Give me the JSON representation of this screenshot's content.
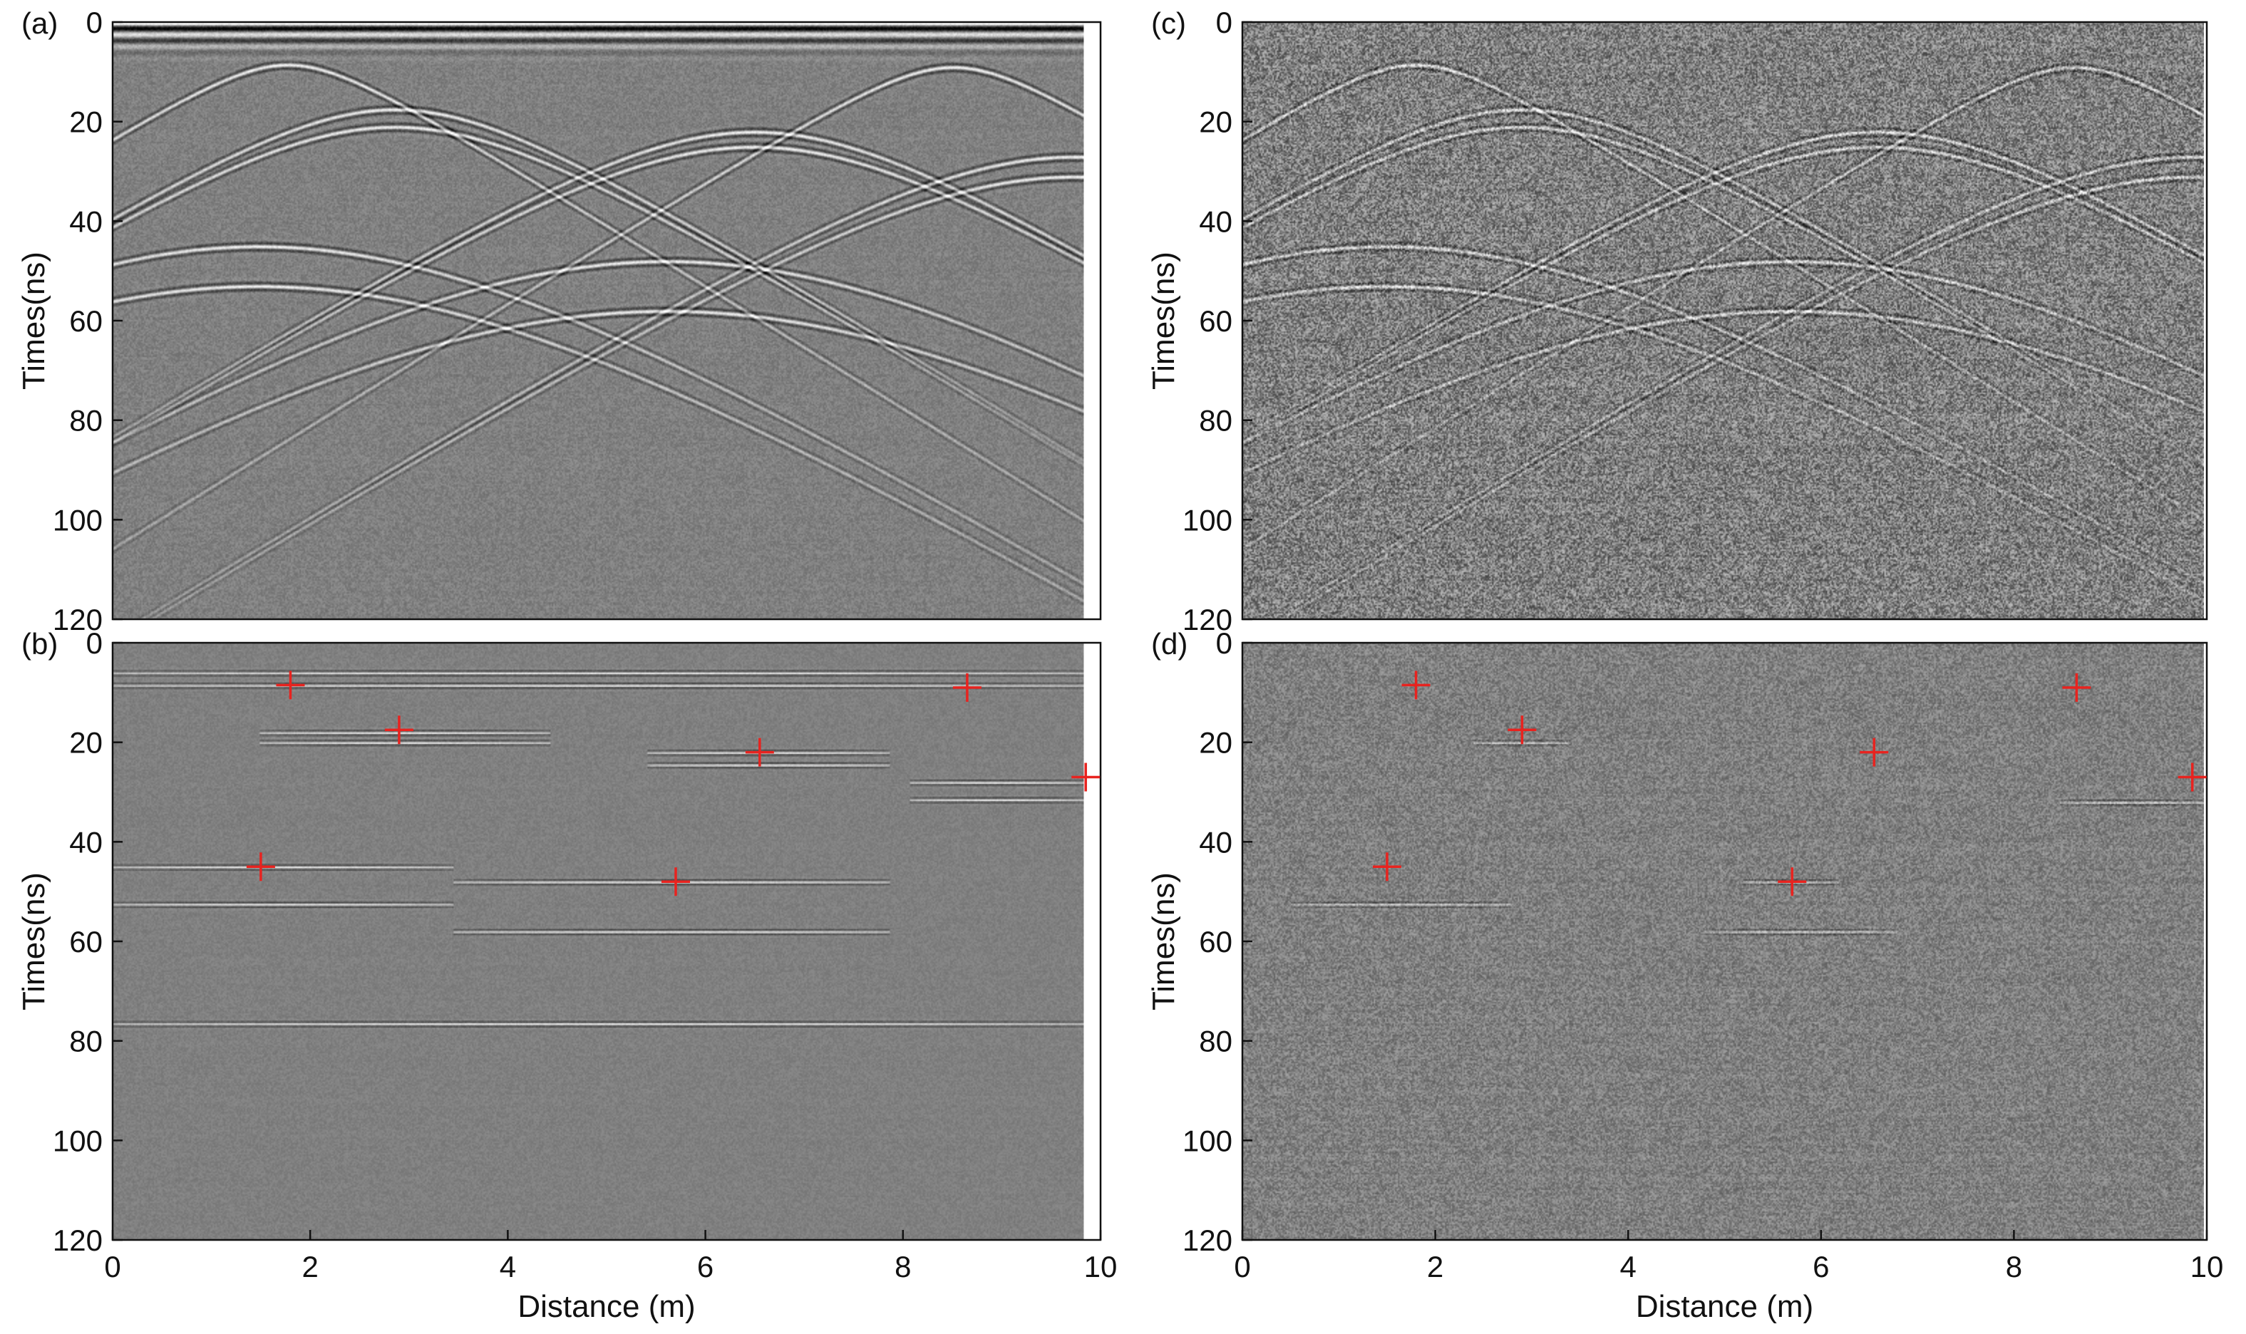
{
  "chart_data": [
    {
      "panel": "(a)",
      "type": "heatmap",
      "description_key": "raw",
      "xlabel": "",
      "ylabel": "Times(ns)",
      "xlim": [
        0,
        10
      ],
      "ylim": [
        0,
        120
      ],
      "yticks": [
        0,
        20,
        40,
        60,
        80,
        100,
        120
      ],
      "xticks": [],
      "noise": 0.16,
      "amp": 1.0,
      "direct_wave": true,
      "hyperbolas": [
        {
          "x0": 1.8,
          "t0": 8.5
        },
        {
          "x0": 2.9,
          "t0": 17.5
        },
        {
          "x0": 2.9,
          "t0": 21.0
        },
        {
          "x0": 6.6,
          "t0": 22.0
        },
        {
          "x0": 6.6,
          "t0": 25.0
        },
        {
          "x0": 8.65,
          "t0": 9.0
        },
        {
          "x0": 9.9,
          "t0": 27.0
        },
        {
          "x0": 9.9,
          "t0": 31.0
        },
        {
          "x0": 1.5,
          "t0": 45.0
        },
        {
          "x0": 1.5,
          "t0": 53.0
        },
        {
          "x0": 5.7,
          "t0": 48.0
        },
        {
          "x0": 5.7,
          "t0": 58.0
        }
      ],
      "markers": []
    },
    {
      "panel": "(b)",
      "type": "heatmap",
      "description_key": "focused",
      "xlabel": "Distance (m)",
      "ylabel": "Times(ns)",
      "xlim": [
        0,
        10
      ],
      "ylim": [
        0,
        120
      ],
      "yticks": [
        0,
        20,
        40,
        60,
        80,
        100,
        120
      ],
      "xticks": [
        0,
        2,
        4,
        6,
        8,
        10
      ],
      "noise": 0.1,
      "amp": 0.9,
      "direct_wave": false,
      "horizontal_events": [
        {
          "t": 6.0,
          "x_from": 0,
          "x_to": 10
        },
        {
          "t": 8.5,
          "x_from": 0,
          "x_to": 10
        },
        {
          "t": 18.0,
          "x_from": 1.5,
          "x_to": 4.5
        },
        {
          "t": 20.0,
          "x_from": 1.5,
          "x_to": 4.5
        },
        {
          "t": 22.0,
          "x_from": 5.5,
          "x_to": 8.0
        },
        {
          "t": 24.5,
          "x_from": 5.5,
          "x_to": 8.0
        },
        {
          "t": 28.0,
          "x_from": 8.2,
          "x_to": 10
        },
        {
          "t": 31.5,
          "x_from": 8.2,
          "x_to": 10
        },
        {
          "t": 45.0,
          "x_from": 0,
          "x_to": 3.5
        },
        {
          "t": 52.5,
          "x_from": 0,
          "x_to": 3.5
        },
        {
          "t": 48.0,
          "x_from": 3.5,
          "x_to": 8.0
        },
        {
          "t": 58.0,
          "x_from": 3.5,
          "x_to": 8.0
        },
        {
          "t": 76.5,
          "x_from": 0,
          "x_to": 10
        }
      ],
      "markers": [
        {
          "x": 1.8,
          "t": 8.5
        },
        {
          "x": 2.9,
          "t": 17.5
        },
        {
          "x": 6.55,
          "t": 22.0
        },
        {
          "x": 8.65,
          "t": 9.0
        },
        {
          "x": 9.85,
          "t": 27.0
        },
        {
          "x": 1.5,
          "t": 45.0
        },
        {
          "x": 5.7,
          "t": 48.0
        }
      ]
    },
    {
      "panel": "(c)",
      "type": "heatmap",
      "description_key": "noisy",
      "xlabel": "",
      "ylabel": "Times(ns)",
      "xlim": [
        0,
        10
      ],
      "ylim": [
        0,
        120
      ],
      "yticks": [
        0,
        20,
        40,
        60,
        80,
        100,
        120
      ],
      "xticks": [],
      "noise": 0.55,
      "amp": 0.75,
      "direct_wave": false,
      "hyperbolas": [
        {
          "x0": 1.8,
          "t0": 8.5
        },
        {
          "x0": 2.9,
          "t0": 17.5
        },
        {
          "x0": 2.9,
          "t0": 21.0
        },
        {
          "x0": 6.6,
          "t0": 22.0
        },
        {
          "x0": 6.6,
          "t0": 25.0
        },
        {
          "x0": 8.65,
          "t0": 9.0
        },
        {
          "x0": 9.9,
          "t0": 27.0
        },
        {
          "x0": 9.9,
          "t0": 31.0
        },
        {
          "x0": 1.5,
          "t0": 45.0
        },
        {
          "x0": 1.5,
          "t0": 53.0
        },
        {
          "x0": 5.7,
          "t0": 48.0
        },
        {
          "x0": 5.7,
          "t0": 58.0
        }
      ],
      "markers": []
    },
    {
      "panel": "(d)",
      "type": "heatmap",
      "description_key": "noisy-focused",
      "xlabel": "Distance (m)",
      "ylabel": "Times(ns)",
      "xlim": [
        0,
        10
      ],
      "ylim": [
        0,
        120
      ],
      "yticks": [
        0,
        20,
        40,
        60,
        80,
        100,
        120
      ],
      "xticks": [
        0,
        2,
        4,
        6,
        8,
        10
      ],
      "noise": 0.3,
      "amp": 0.7,
      "direct_wave": false,
      "horizontal_events": [
        {
          "t": 52.5,
          "x_from": 0.5,
          "x_to": 2.8
        },
        {
          "t": 58.0,
          "x_from": 4.8,
          "x_to": 6.8
        },
        {
          "t": 48.0,
          "x_from": 5.2,
          "x_to": 6.2
        },
        {
          "t": 32.0,
          "x_from": 8.5,
          "x_to": 10
        },
        {
          "t": 20.0,
          "x_from": 2.4,
          "x_to": 3.4
        }
      ],
      "markers": [
        {
          "x": 1.8,
          "t": 8.5
        },
        {
          "x": 2.9,
          "t": 17.5
        },
        {
          "x": 6.55,
          "t": 22.0
        },
        {
          "x": 8.65,
          "t": 9.0
        },
        {
          "x": 9.85,
          "t": 27.0
        },
        {
          "x": 1.5,
          "t": 45.0
        },
        {
          "x": 5.7,
          "t": 48.0
        }
      ]
    }
  ],
  "colors": {
    "marker": "#e8231f",
    "axis": "#111111",
    "background": "#ffffff"
  }
}
